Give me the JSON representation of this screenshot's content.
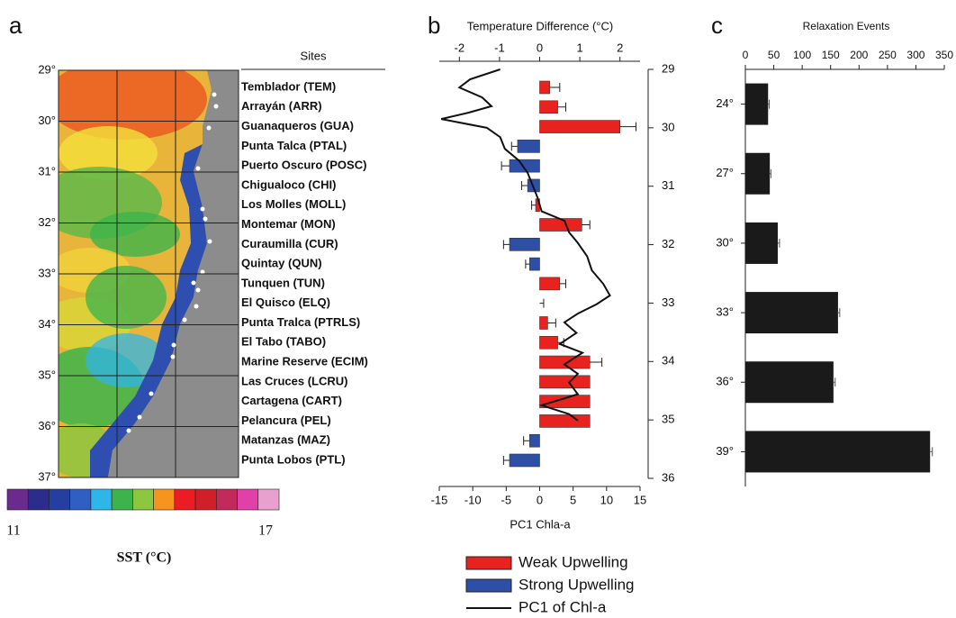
{
  "chart_data": [
    {
      "type": "map",
      "panel": "a",
      "lat_labels": [
        "29°",
        "30°",
        "31°",
        "32°",
        "33°",
        "34°",
        "35°",
        "36°",
        "37°"
      ],
      "sites_title": "Sites",
      "sites": [
        "Temblador (TEM)",
        "Arrayán (ARR)",
        "Guanaqueros (GUA)",
        "Punta Talca (PTAL)",
        "Puerto Oscuro (POSC)",
        "Chigualoco (CHI)",
        "Los Molles (MOLL)",
        "Montemar (MON)",
        "Curaumilla (CUR)",
        "Quintay (QUN)",
        "Tunquen (TUN)",
        "El Quisco (ELQ)",
        "Punta Tralca (PTRLS)",
        "El Tabo (TABO)",
        "Marine Reserve (ECIM)",
        "Las Cruces (LCRU)",
        "Cartagena (CART)",
        "Pelancura (PEL)",
        "Matanzas (MAZ)",
        "Punta Lobos (PTL)"
      ],
      "colorbar": {
        "colors": [
          "#6a2a8e",
          "#2c2c8c",
          "#243f9f",
          "#2f5fc2",
          "#2fb6e8",
          "#3cb44b",
          "#8dc63f",
          "#f7941d",
          "#ec1c24",
          "#d11f2a",
          "#c22a5c",
          "#e040a8",
          "#e8a0d0"
        ],
        "range": [
          11,
          17
        ],
        "title": "SST (°C)"
      }
    },
    {
      "type": "bar",
      "panel": "b",
      "title": "Temperature Difference (°C)",
      "x2_label": "PC1 Chla-a",
      "xlim": [
        -2.5,
        2.5
      ],
      "xticks": [
        -2,
        -1,
        0,
        1,
        2
      ],
      "x2lim": [
        -15,
        15
      ],
      "x2ticks": [
        -15,
        -10,
        -5,
        0,
        5,
        10,
        15
      ],
      "ylim": [
        29,
        36
      ],
      "yticks": [
        29,
        30,
        31,
        32,
        33,
        34,
        35,
        36
      ],
      "series": [
        {
          "name": "Weak Upwelling",
          "color": "#e8231f",
          "values": [
            0.25,
            0.45,
            2.0,
            null,
            null,
            null,
            -0.1,
            1.05,
            null,
            null,
            0.5,
            0,
            0.2,
            0.45,
            1.25,
            1.25,
            1.25,
            1.25,
            null,
            null
          ],
          "errors": [
            0.25,
            0.2,
            0.4,
            null,
            null,
            null,
            0.1,
            0.2,
            null,
            null,
            0.15,
            0.1,
            0.2,
            0.15,
            0.3,
            0,
            0,
            0,
            null,
            null
          ]
        },
        {
          "name": "Strong Upwelling",
          "color": "#2e4fa6",
          "values": [
            null,
            null,
            null,
            -0.55,
            -0.75,
            -0.3,
            null,
            null,
            -0.75,
            -0.25,
            null,
            null,
            null,
            null,
            null,
            null,
            null,
            null,
            -0.25,
            -0.75
          ],
          "errors": [
            null,
            null,
            null,
            0.15,
            0.2,
            0.15,
            null,
            null,
            0.15,
            0.1,
            null,
            null,
            null,
            null,
            null,
            null,
            null,
            null,
            0.15,
            0.15
          ]
        },
        {
          "name": "PC1 of Chl-a",
          "color": "#111111",
          "axis": "x2",
          "values": [
            -5.9,
            -10.4,
            -12,
            -8.6,
            -7.2,
            -10.6,
            -14.7,
            -7.9,
            -5.9,
            -5.2,
            -3.1,
            -1.8,
            -1.1,
            -0.3,
            0.3,
            3.7,
            4.4,
            5.7,
            7.1,
            7.8,
            9.5,
            10.5,
            8.5,
            5.7,
            3.7,
            5.5,
            3.0,
            6.4,
            3.7,
            5.7,
            4.4,
            5.7,
            0.3,
            4.4,
            5.7
          ],
          "latitude": [
            29.0,
            29.17,
            29.31,
            29.48,
            29.63,
            29.74,
            29.85,
            30.0,
            30.16,
            30.36,
            30.56,
            30.77,
            30.97,
            31.2,
            31.43,
            31.59,
            31.79,
            31.97,
            32.2,
            32.44,
            32.67,
            32.87,
            33.02,
            33.18,
            33.33,
            33.51,
            33.7,
            33.85,
            34.05,
            34.21,
            34.36,
            34.56,
            34.75,
            34.9,
            35.01
          ]
        }
      ]
    },
    {
      "type": "bar",
      "panel": "c",
      "title": "Relaxation Events",
      "categories": [
        "24°",
        "27°",
        "30°",
        "33°",
        "36°",
        "39°"
      ],
      "values": [
        40,
        43,
        57,
        163,
        155,
        325
      ],
      "errors": [
        2,
        2,
        3,
        3,
        3,
        4
      ],
      "color": "#1a1a1a",
      "xlim": [
        0,
        350
      ],
      "xticks": [
        0,
        50,
        100,
        150,
        200,
        250,
        300,
        350
      ]
    }
  ]
}
